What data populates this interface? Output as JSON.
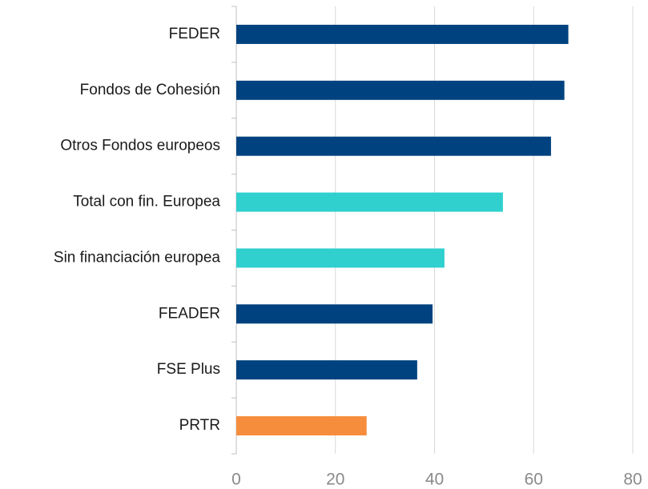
{
  "chart_data": {
    "type": "bar",
    "orientation": "horizontal",
    "categories": [
      "FEDER",
      "Fondos de Cohesión",
      "Otros Fondos europeos",
      "Total con fin. Europea",
      "Sin financiación europea",
      "FEADER",
      "FSE Plus",
      "PRTR"
    ],
    "values": [
      67.0,
      66.2,
      63.5,
      53.8,
      42.0,
      39.6,
      36.5,
      26.3
    ],
    "colors": [
      "#00427f",
      "#00427f",
      "#00427f",
      "#2fd0ce",
      "#2fd0ce",
      "#00427f",
      "#00427f",
      "#f68d3c"
    ],
    "xlim": [
      0,
      80
    ],
    "xticks": [
      0,
      20,
      40,
      60,
      80
    ],
    "grid": true
  }
}
